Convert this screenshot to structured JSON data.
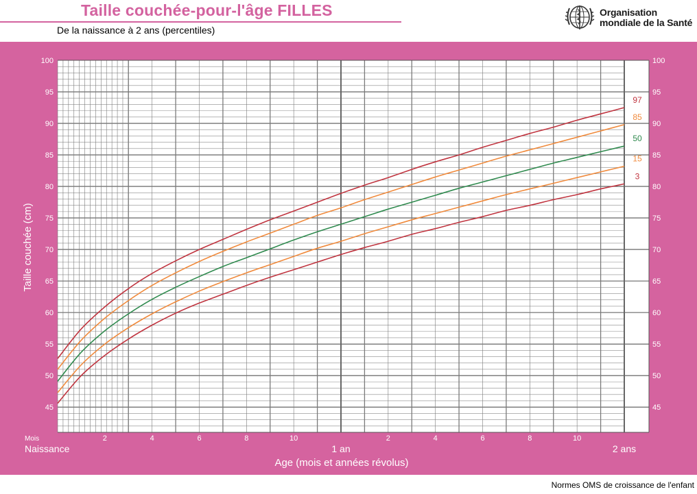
{
  "header": {
    "title": "Taille couchée-pour-l'âge  FILLES",
    "subtitle": "De la naissance à 2 ans (percentiles)",
    "org_line1": "Organisation",
    "org_line2": "mondiale de la Santé",
    "emblem_icon": "who-emblem-icon"
  },
  "footer": {
    "text": "Normes OMS de croissance de l'enfant"
  },
  "colors": {
    "band": "#d5639f",
    "title": "#d3629f",
    "p3": "#c0343f",
    "p15": "#f08a3c",
    "p50": "#2f8a4e",
    "p85": "#f08a3c",
    "p97": "#c0343f"
  },
  "chart_data": {
    "type": "line",
    "title": "",
    "ylabel": "Taille couchée (cm)",
    "xlabel": "Age (mois et années révolus)",
    "xlim": [
      0,
      24
    ],
    "ylim": [
      41,
      100
    ],
    "grid": true,
    "y_ticks": [
      "45",
      "50",
      "55",
      "60",
      "65",
      "70",
      "75",
      "80",
      "85",
      "90",
      "95",
      "100"
    ],
    "x_month_label": "Mois",
    "x_month_ticks": [
      {
        "x": 2,
        "label": "2"
      },
      {
        "x": 4,
        "label": "4"
      },
      {
        "x": 6,
        "label": "6"
      },
      {
        "x": 8,
        "label": "8"
      },
      {
        "x": 10,
        "label": "10"
      },
      {
        "x": 14,
        "label": "2"
      },
      {
        "x": 16,
        "label": "4"
      },
      {
        "x": 18,
        "label": "6"
      },
      {
        "x": 20,
        "label": "8"
      },
      {
        "x": 22,
        "label": "10"
      }
    ],
    "x_year_ticks": [
      {
        "x": 0,
        "label": "Naissance"
      },
      {
        "x": 12,
        "label": "1 an"
      },
      {
        "x": 24,
        "label": "2 ans"
      }
    ],
    "x": [
      0,
      1,
      2,
      3,
      4,
      5,
      6,
      7,
      8,
      9,
      10,
      11,
      12,
      13,
      14,
      15,
      16,
      17,
      18,
      19,
      20,
      21,
      22,
      23,
      24
    ],
    "series": [
      {
        "name": "3",
        "color_key": "p3",
        "values": [
          45.6,
          50.0,
          53.2,
          55.8,
          58.0,
          59.9,
          61.5,
          62.9,
          64.3,
          65.6,
          66.8,
          68.0,
          69.2,
          70.3,
          71.3,
          72.4,
          73.3,
          74.3,
          75.2,
          76.2,
          77.0,
          77.9,
          78.7,
          79.6,
          80.4
        ]
      },
      {
        "name": "15",
        "color_key": "p15",
        "values": [
          47.3,
          51.7,
          55.0,
          57.6,
          59.8,
          61.7,
          63.4,
          64.9,
          66.3,
          67.6,
          68.9,
          70.2,
          71.3,
          72.5,
          73.6,
          74.7,
          75.7,
          76.7,
          77.7,
          78.7,
          79.6,
          80.5,
          81.4,
          82.3,
          83.2
        ]
      },
      {
        "name": "50",
        "color_key": "p50",
        "values": [
          49.1,
          53.7,
          57.1,
          59.8,
          62.1,
          64.0,
          65.7,
          67.3,
          68.7,
          70.1,
          71.5,
          72.8,
          74.0,
          75.2,
          76.4,
          77.5,
          78.6,
          79.7,
          80.7,
          81.7,
          82.7,
          83.7,
          84.6,
          85.5,
          86.4
        ]
      },
      {
        "name": "85",
        "color_key": "p85",
        "values": [
          51.0,
          55.6,
          59.1,
          61.9,
          64.3,
          66.3,
          68.1,
          69.7,
          71.2,
          72.6,
          74.0,
          75.4,
          76.6,
          77.9,
          79.1,
          80.3,
          81.5,
          82.6,
          83.7,
          84.8,
          85.8,
          86.8,
          87.8,
          88.8,
          89.8
        ]
      },
      {
        "name": "97",
        "color_key": "p97",
        "values": [
          52.7,
          57.4,
          60.9,
          63.8,
          66.2,
          68.2,
          70.0,
          71.6,
          73.2,
          74.7,
          76.1,
          77.5,
          78.9,
          80.2,
          81.4,
          82.7,
          83.9,
          85.0,
          86.2,
          87.3,
          88.4,
          89.4,
          90.5,
          91.5,
          92.5
        ]
      }
    ]
  }
}
